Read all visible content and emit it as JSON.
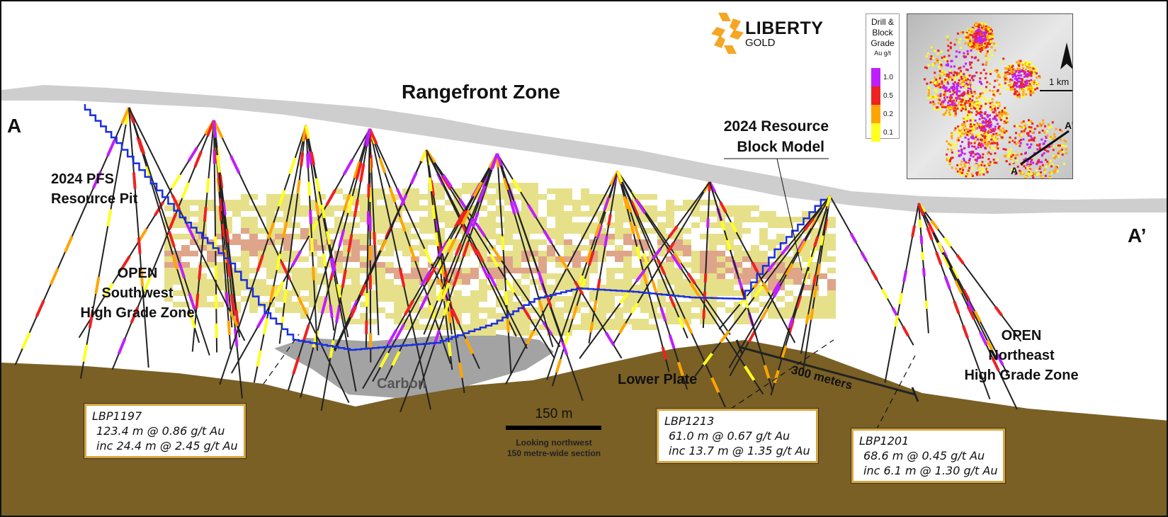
{
  "title": "Rangefront Zone",
  "section_ends": {
    "left": "A",
    "right": "A’"
  },
  "logo": {
    "name": "LIBERTY",
    "sub": "GOLD",
    "color": "#f5a623"
  },
  "legend": {
    "title_lines": [
      "Drill &",
      "Block",
      "Grade"
    ],
    "unit": "Au g/t",
    "items": [
      {
        "value": "1.0",
        "color": "#bf1fff"
      },
      {
        "value": "0.5",
        "color": "#ee2222"
      },
      {
        "value": "0.2",
        "color": "#ffa500"
      },
      {
        "value": "0.1",
        "color": "#ffff22"
      }
    ]
  },
  "inset_map": {
    "scale_label": "1 km",
    "north_arrow": "north-arrow-icon",
    "a_label": "A",
    "a_prime_label": "A’"
  },
  "labels": {
    "pit": [
      "2024 PFS",
      "Resource Pit"
    ],
    "block_model": [
      "2024 Resource",
      "Block Model"
    ],
    "sw_zone": [
      "OPEN",
      "Southwest",
      "High Grade Zone"
    ],
    "ne_zone": [
      "OPEN",
      "Northeast",
      "High Grade Zone"
    ],
    "carbon": "Carbon",
    "lower_plate": "Lower Plate",
    "distance": "300 meters",
    "scale_bar": "150 m",
    "view_note": [
      "Looking northwest",
      "150 metre-wide section"
    ]
  },
  "callouts": [
    {
      "hole": "LBP1197",
      "lines": [
        "123.4 m @ 0.86 g/t Au",
        "inc 24.4 m @ 2.45 g/t Au"
      ]
    },
    {
      "hole": "LBP1213",
      "lines": [
        "61.0 m @ 0.67 g/t Au",
        "inc 13.7 m @ 1.35 g/t Au"
      ]
    },
    {
      "hole": "LBP1201",
      "lines": [
        "68.6 m @ 0.45 g/t Au",
        "inc 6.1 m @ 1.30 g/t Au"
      ]
    }
  ],
  "colors": {
    "lower_plate": "#7a6025",
    "surface": "#c8c8c8",
    "pit": "#1a2fe0",
    "block_low": "#e6e08a",
    "block_mid": "#dfa58a",
    "carbon": "#a0a0a0"
  }
}
